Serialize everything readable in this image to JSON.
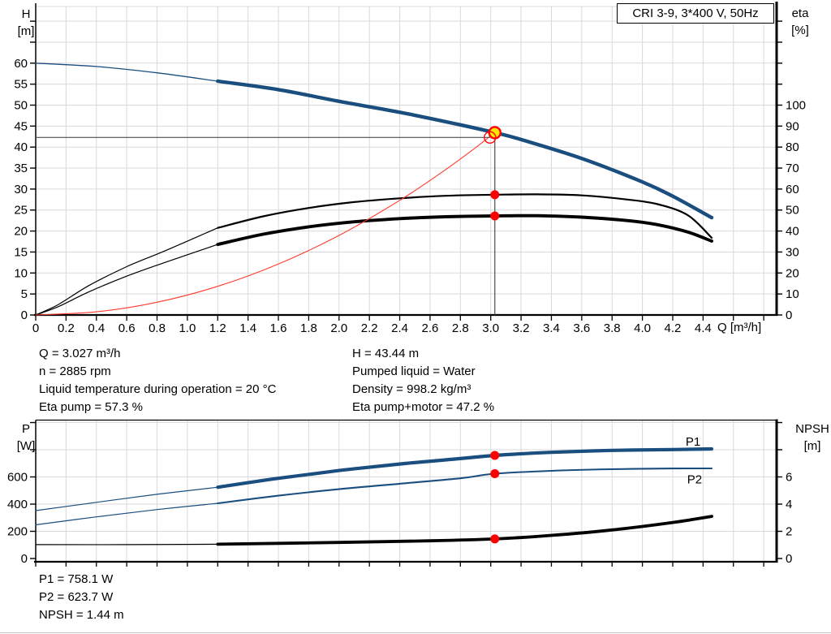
{
  "title_box": {
    "text": "CRI 3-9, 3*400 V, 50Hz"
  },
  "colors": {
    "blue": "#1a4e7f",
    "label_blue": "#1d5a96",
    "red": "#ff0000",
    "system_red": "#ff3b30",
    "yellow": "#ffe600",
    "grid": "#d9d9d9",
    "crosshair": "#4d4d4d",
    "black": "#000000",
    "hairline": "#c4c4c4"
  },
  "annotations": {
    "mid_left": [
      "Q = 3.027 m³/h",
      "n = 2885 rpm",
      "Liquid temperature during operation = 20 °C",
      "Eta pump = 57.3 %"
    ],
    "mid_right": [
      "H = 43.44 m",
      "Pumped liquid = Water",
      "Density = 998.2 kg/m³",
      "Eta pump+motor = 47.2 %"
    ],
    "bottom": [
      "P1 = 758.1 W",
      "P2 = 623.7 W",
      "NPSH = 1.44 m"
    ]
  },
  "chart_data": [
    {
      "id": "qh-eta-chart",
      "type": "line",
      "x_axis": {
        "label": "Q [m³/h]",
        "min": 0,
        "max": 4.885,
        "tick_step": 0.2,
        "last_labeled": 4.4
      },
      "y_left": {
        "label": "H [m]",
        "label_lines": [
          "H",
          "[m]"
        ],
        "min": 0,
        "max": 73.5,
        "tick_step": 5,
        "last_labeled": 60
      },
      "y_right": {
        "label": "eta [%]",
        "label_lines": [
          "eta",
          "[%]"
        ],
        "min": 0,
        "max": 147,
        "tick_step": 10,
        "last_labeled": 100
      },
      "series": [
        {
          "name": "QH curve",
          "axis": "left",
          "color_key": "blue",
          "thin_width": 1.3,
          "thick_width": 4.4,
          "thin_points": [
            [
              0,
              60
            ],
            [
              0.4,
              59.2
            ],
            [
              0.8,
              57.7
            ],
            [
              1.2,
              55.7
            ]
          ],
          "thick_points": [
            [
              1.2,
              55.7
            ],
            [
              1.6,
              53.7
            ],
            [
              2.0,
              50.9
            ],
            [
              2.4,
              48.3
            ],
            [
              2.8,
              45.3
            ],
            [
              3.027,
              43.44
            ],
            [
              3.2,
              41.8
            ],
            [
              3.6,
              37.3
            ],
            [
              4.0,
              31.7
            ],
            [
              4.2,
              28.3
            ],
            [
              4.457,
              23.2
            ]
          ]
        },
        {
          "name": "Eta pump",
          "axis": "right",
          "color_key": "black",
          "thin_width": 1.2,
          "thick_width": 2.2,
          "thin_points": [
            [
              0,
              0
            ],
            [
              0.15,
              5
            ],
            [
              0.35,
              14
            ],
            [
              0.6,
              23
            ],
            [
              0.85,
              30.5
            ],
            [
              1.2,
              41.5
            ]
          ],
          "thick_points": [
            [
              1.2,
              41.5
            ],
            [
              1.5,
              47
            ],
            [
              1.8,
              51
            ],
            [
              2.1,
              53.8
            ],
            [
              2.4,
              55.6
            ],
            [
              2.7,
              56.8
            ],
            [
              3.027,
              57.3
            ],
            [
              3.3,
              57.5
            ],
            [
              3.6,
              57
            ],
            [
              3.9,
              55
            ],
            [
              4.1,
              52.8
            ],
            [
              4.3,
              47.5
            ],
            [
              4.457,
              36.8
            ]
          ]
        },
        {
          "name": "Eta pump+motor",
          "axis": "right",
          "color_key": "black",
          "thin_width": 1.2,
          "thick_width": 3.9,
          "thin_points": [
            [
              0,
              0
            ],
            [
              0.15,
              4
            ],
            [
              0.35,
              11
            ],
            [
              0.6,
              18.5
            ],
            [
              0.85,
              25
            ],
            [
              1.2,
              33.6
            ]
          ],
          "thick_points": [
            [
              1.2,
              33.6
            ],
            [
              1.5,
              38.5
            ],
            [
              1.8,
              42
            ],
            [
              2.1,
              44.4
            ],
            [
              2.4,
              45.9
            ],
            [
              2.7,
              46.8
            ],
            [
              3.027,
              47.2
            ],
            [
              3.3,
              47.3
            ],
            [
              3.6,
              46.6
            ],
            [
              3.9,
              45
            ],
            [
              4.1,
              43
            ],
            [
              4.3,
              39.5
            ],
            [
              4.457,
              35.2
            ]
          ]
        },
        {
          "name": "System curve",
          "axis": "left",
          "color_key": "system_red",
          "thin_width": 1.1,
          "thick_width": 1.1,
          "thin_points": [],
          "thick_points": [
            [
              0,
              0
            ],
            [
              0.4,
              0.76
            ],
            [
              0.8,
              3.03
            ],
            [
              1.2,
              6.83
            ],
            [
              1.6,
              12.14
            ],
            [
              2.0,
              18.96
            ],
            [
              2.4,
              27.31
            ],
            [
              2.7,
              34.56
            ],
            [
              2.9,
              39.87
            ],
            [
              3.027,
              43.44
            ]
          ]
        }
      ],
      "crosshair": {
        "q": 3.027,
        "h": 43.44,
        "h_line": 42.3
      },
      "markers": [
        {
          "name": "duty-point",
          "style": "duty",
          "q": 3.027,
          "axis": "left",
          "value": 43.44
        },
        {
          "name": "system-curve-point",
          "style": "open",
          "q": 2.995,
          "axis": "left",
          "value": 42.3
        },
        {
          "name": "eta-pump-operating-point",
          "style": "dot",
          "q": 3.027,
          "axis": "right",
          "value": 57.3
        },
        {
          "name": "eta-pump-motor-operating-point",
          "style": "dot",
          "q": 3.027,
          "axis": "right",
          "value": 47.2
        }
      ],
      "series_labels": []
    },
    {
      "id": "power-npsh-chart",
      "type": "line",
      "x_axis": {
        "label": "",
        "min": 0,
        "max": 4.885,
        "tick_step": 0.2,
        "last_labeled": -1
      },
      "y_left": {
        "label": "P [W]",
        "label_lines": [
          "P",
          "[W]"
        ],
        "min": 0,
        "max": 1018,
        "tick_step": 200,
        "last_labeled": 600
      },
      "y_right": {
        "label": "NPSH [m]",
        "label_lines": [
          "NPSH",
          "[m]"
        ],
        "min": 0,
        "max": 10.18,
        "tick_step": 2,
        "last_labeled": 6
      },
      "series": [
        {
          "name": "P1",
          "axis": "left",
          "color_key": "blue",
          "thin_width": 1.2,
          "thick_width": 4.2,
          "thin_points": [
            [
              0,
              352
            ],
            [
              0.4,
              413
            ],
            [
              0.8,
              472
            ],
            [
              1.2,
              524
            ]
          ],
          "thick_points": [
            [
              1.2,
              524
            ],
            [
              1.6,
              590
            ],
            [
              2.0,
              647
            ],
            [
              2.4,
              695
            ],
            [
              2.8,
              735
            ],
            [
              3.027,
              758.1
            ],
            [
              3.4,
              781
            ],
            [
              3.8,
              795
            ],
            [
              4.2,
              801
            ],
            [
              4.457,
              806
            ]
          ]
        },
        {
          "name": "P2",
          "axis": "left",
          "color_key": "blue",
          "thin_width": 1.2,
          "thick_width": 2.1,
          "thin_points": [
            [
              0,
              248
            ],
            [
              0.4,
              306
            ],
            [
              0.8,
              360
            ],
            [
              1.2,
              406
            ]
          ],
          "thick_points": [
            [
              1.2,
              406
            ],
            [
              1.6,
              462
            ],
            [
              2.0,
              510
            ],
            [
              2.4,
              550
            ],
            [
              2.8,
              590
            ],
            [
              3.027,
              623.7
            ],
            [
              3.4,
              645
            ],
            [
              3.8,
              657
            ],
            [
              4.2,
              662
            ],
            [
              4.457,
              663
            ]
          ]
        },
        {
          "name": "NPSH",
          "axis": "right",
          "color_key": "black",
          "thin_width": 1.2,
          "thick_width": 3.8,
          "thin_points": [
            [
              0,
              1.02
            ],
            [
              0.6,
              1.02
            ],
            [
              1.2,
              1.05
            ]
          ],
          "thick_points": [
            [
              1.2,
              1.05
            ],
            [
              2.0,
              1.18
            ],
            [
              2.6,
              1.3
            ],
            [
              3.027,
              1.44
            ],
            [
              3.4,
              1.7
            ],
            [
              3.8,
              2.1
            ],
            [
              4.2,
              2.65
            ],
            [
              4.457,
              3.1
            ]
          ]
        }
      ],
      "crosshair": null,
      "markers": [
        {
          "name": "p1-operating-point",
          "style": "dot",
          "q": 3.027,
          "axis": "left",
          "value": 758.1
        },
        {
          "name": "p2-operating-point",
          "style": "dot",
          "q": 3.027,
          "axis": "left",
          "value": 623.7
        },
        {
          "name": "npsh-operating-point",
          "style": "dot",
          "q": 3.027,
          "axis": "right",
          "value": 1.44
        }
      ],
      "series_labels": [
        {
          "text": "P1",
          "q": 4.285,
          "axis": "left",
          "value": 830
        },
        {
          "text": "P2",
          "q": 4.295,
          "axis": "left",
          "value": 552
        }
      ]
    }
  ]
}
